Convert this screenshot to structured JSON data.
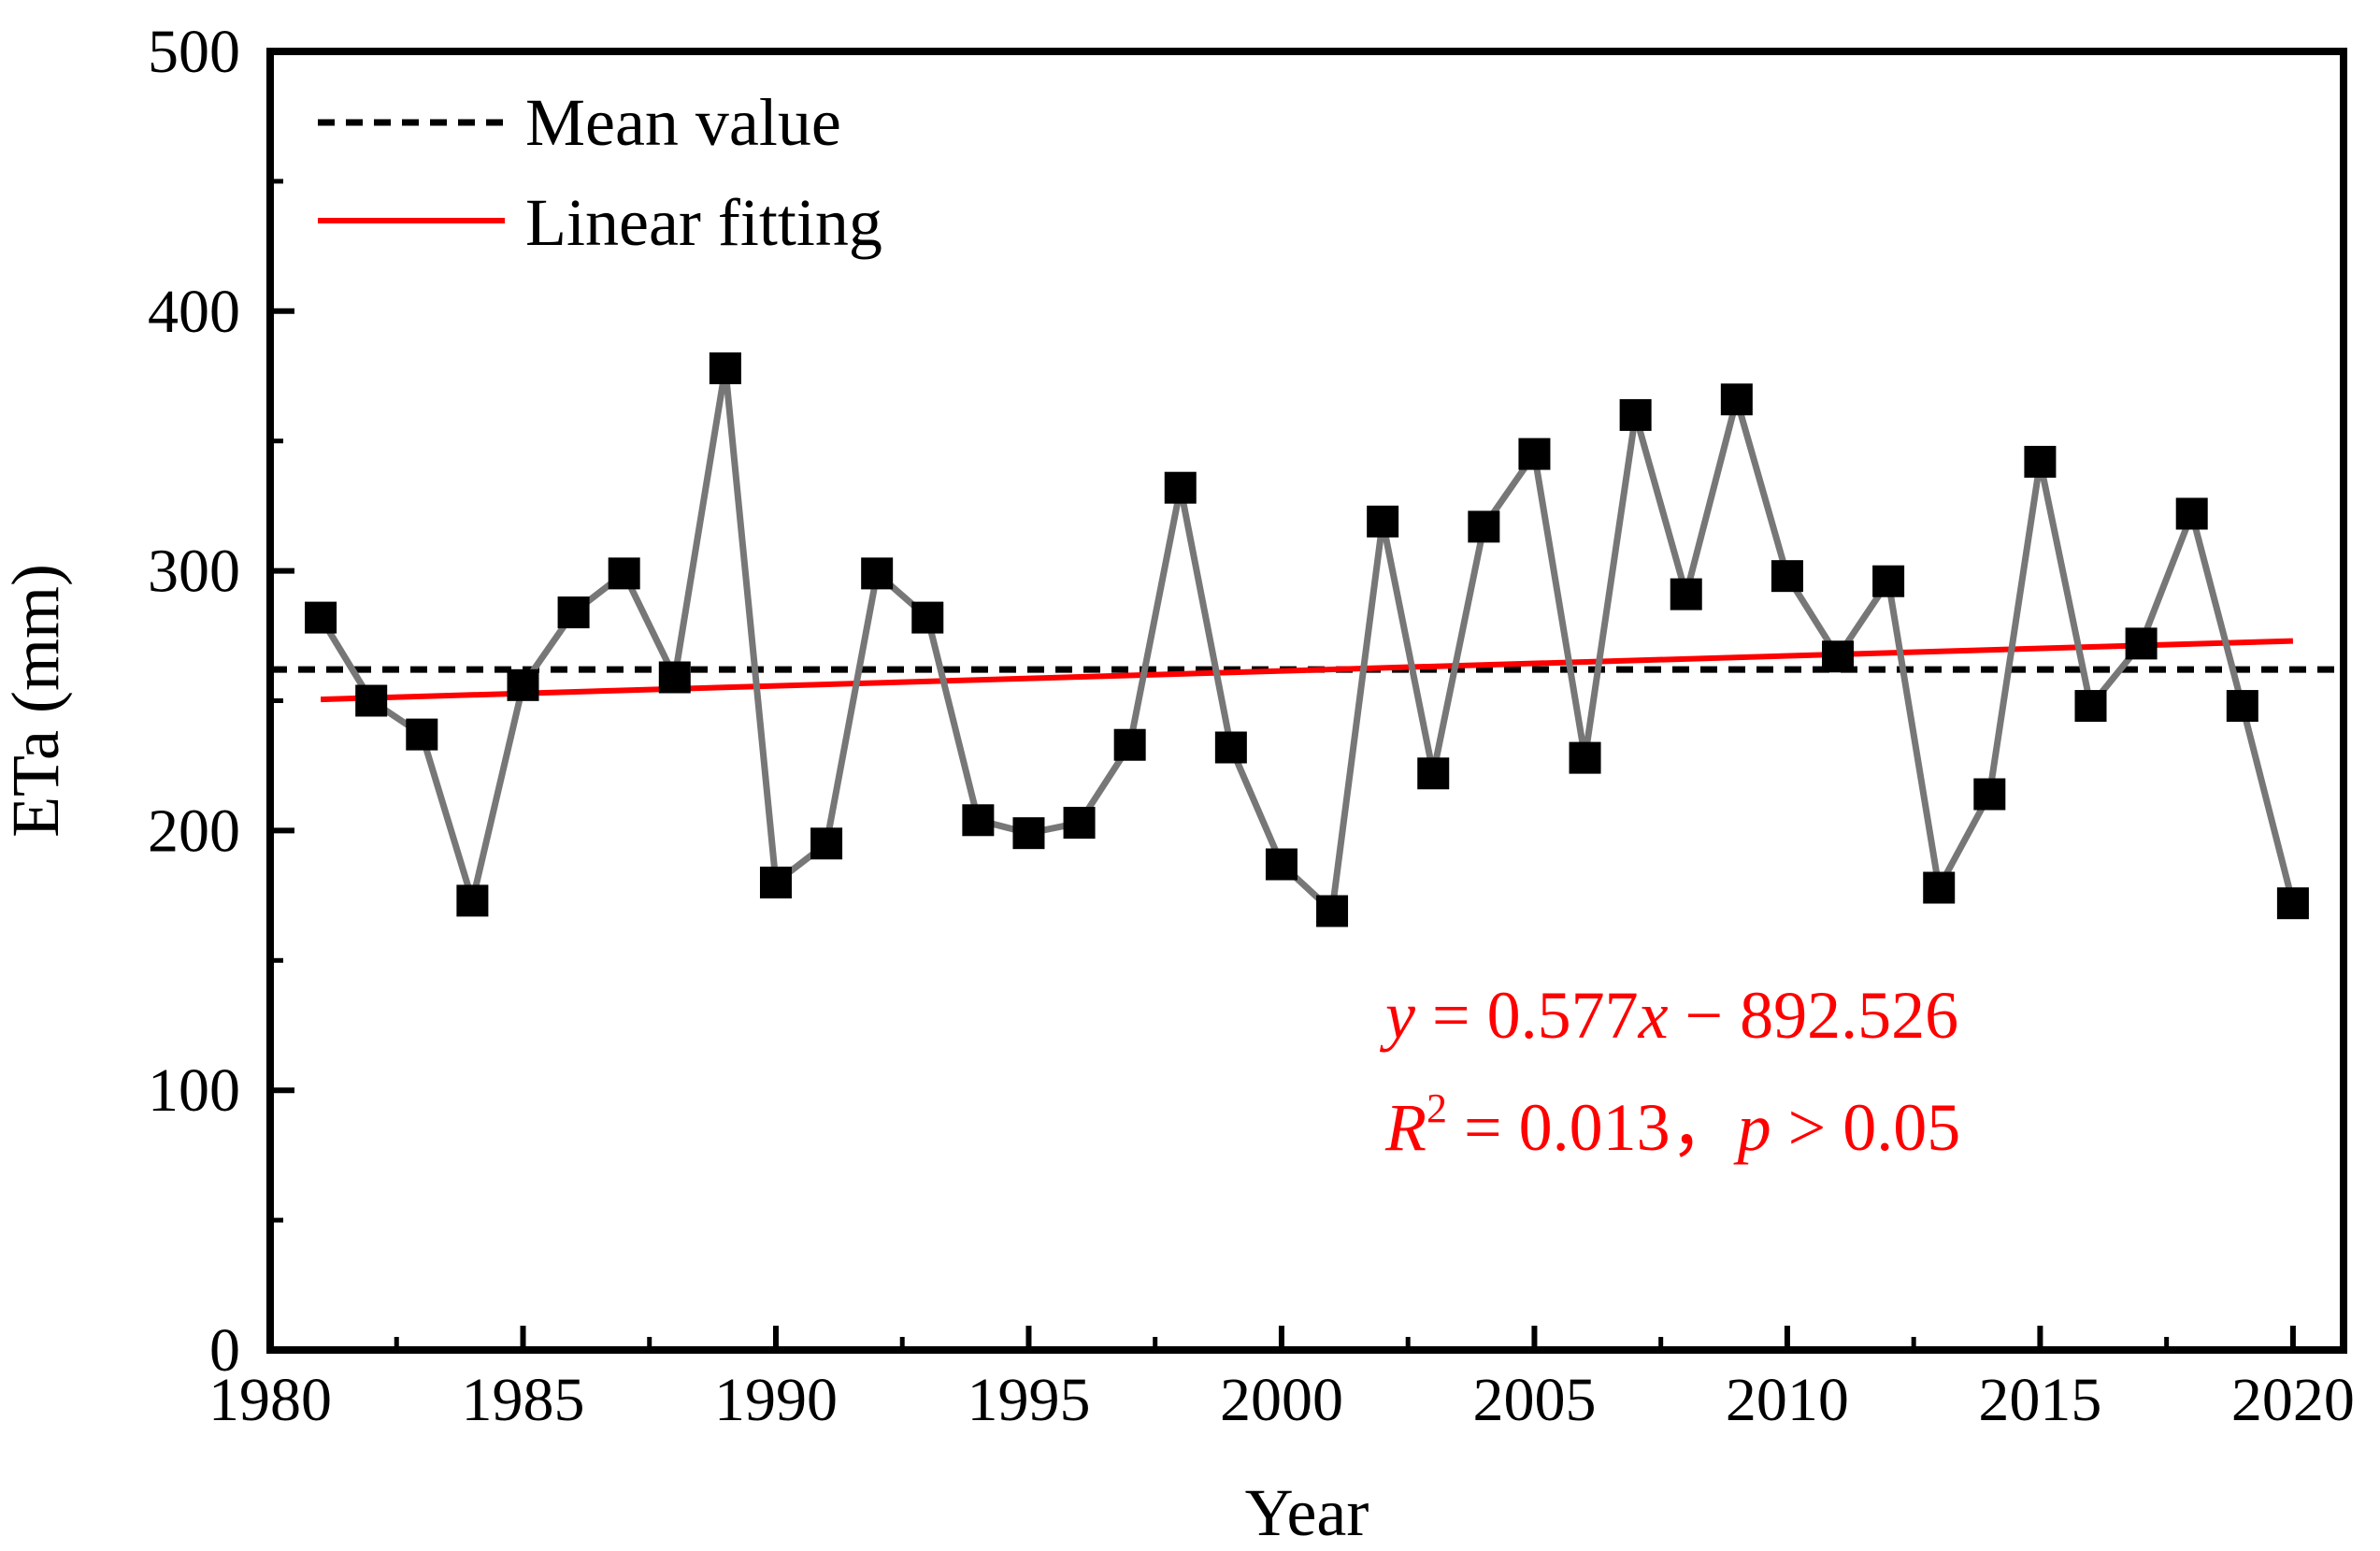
{
  "chart_data": {
    "type": "line",
    "xlabel": "Year",
    "ylabel": "ETa (mm)",
    "xlim": [
      1980,
      2021
    ],
    "ylim": [
      0,
      500
    ],
    "x_ticks": [
      1980,
      1985,
      1990,
      1995,
      2000,
      2005,
      2010,
      2015,
      2020
    ],
    "y_ticks": [
      0,
      100,
      200,
      300,
      400,
      500
    ],
    "x_tick_labels": [
      "1980",
      "1985",
      "1990",
      "1995",
      "2000",
      "2005",
      "2010",
      "2015",
      "2020"
    ],
    "y_tick_labels": [
      "0",
      "100",
      "200",
      "300",
      "400",
      "500"
    ],
    "series": [
      {
        "name": "ETa",
        "color": "#777777",
        "marker_color": "#000000",
        "x": [
          1981,
          1982,
          1983,
          1984,
          1985,
          1986,
          1987,
          1988,
          1989,
          1990,
          1991,
          1992,
          1993,
          1994,
          1995,
          1996,
          1997,
          1998,
          1999,
          2000,
          2001,
          2002,
          2003,
          2004,
          2005,
          2006,
          2007,
          2008,
          2009,
          2010,
          2011,
          2012,
          2013,
          2014,
          2015,
          2016,
          2017,
          2018,
          2019,
          2020
        ],
        "values": [
          282,
          250,
          237,
          173,
          256,
          284,
          299,
          259,
          378,
          180,
          195,
          299,
          282,
          204,
          199,
          203,
          233,
          332,
          232,
          187,
          169,
          319,
          222,
          317,
          345,
          228,
          360,
          291,
          366,
          298,
          267,
          296,
          178,
          214,
          342,
          248,
          272,
          322,
          248,
          172
        ]
      }
    ],
    "mean_value": 262,
    "fit": {
      "slope": 0.577,
      "intercept": -892.526,
      "x_start": 1981,
      "x_end": 2020
    },
    "legend": {
      "position": "top-left",
      "entries": [
        {
          "label": "Mean value",
          "style": "dashed",
          "color": "#000000"
        },
        {
          "label": "Linear fitting",
          "style": "solid",
          "color": "#ff0000"
        }
      ]
    },
    "annotations": {
      "equation_line1": {
        "y": "y",
        "eq": " = 0.577",
        "x": "x",
        "rest": " − 892.526"
      },
      "equation_line2": {
        "R": "R",
        "sup": "2",
        "mid": " = 0.013，",
        "p": "p",
        "rest": " > 0.05"
      },
      "color": "#ff0000"
    }
  }
}
